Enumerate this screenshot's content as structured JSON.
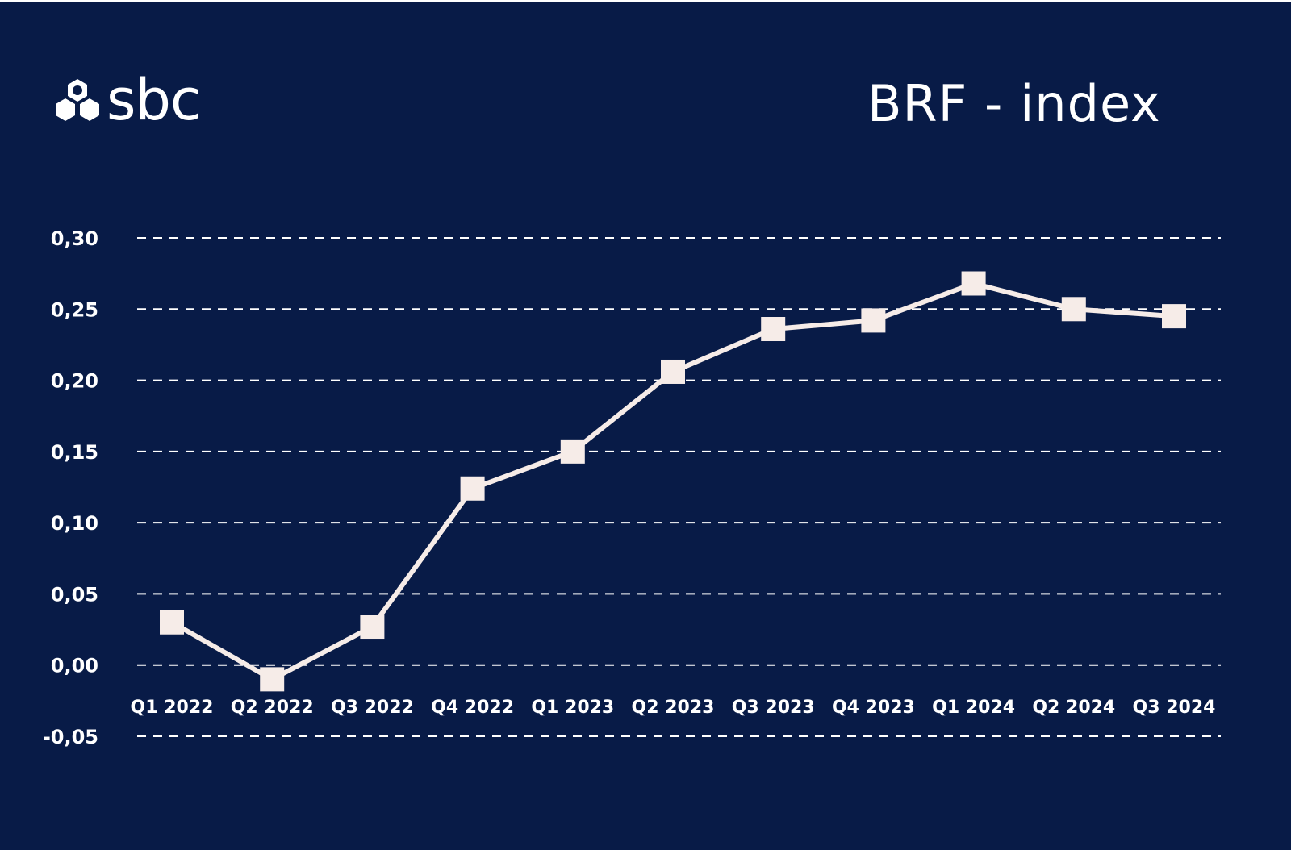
{
  "header": {
    "logo_text": "sbc",
    "title": "BRF - index"
  },
  "colors": {
    "background": "#081b47",
    "line": "#f6ece8",
    "grid": "#ffffff",
    "text": "#ffffff"
  },
  "chart_data": {
    "type": "line",
    "title": "BRF - index",
    "xlabel": "",
    "ylabel": "",
    "categories": [
      "Q1 2022",
      "Q2 2022",
      "Q3 2022",
      "Q4 2022",
      "Q1 2023",
      "Q2 2023",
      "Q3 2023",
      "Q4 2023",
      "Q1 2024",
      "Q2 2024",
      "Q3 2024"
    ],
    "series": [
      {
        "name": "BRF - index",
        "values": [
          0.03,
          -0.01,
          0.027,
          0.124,
          0.15,
          0.206,
          0.236,
          0.242,
          0.268,
          0.25,
          0.245
        ]
      }
    ],
    "yticks": [
      "-0,05",
      "0,00",
      "0,05",
      "0,10",
      "0,15",
      "0,20",
      "0,25",
      "0,30"
    ],
    "ylim": [
      -0.05,
      0.3
    ],
    "grid": "horizontal dashed",
    "legend": "none",
    "marker": "square"
  }
}
